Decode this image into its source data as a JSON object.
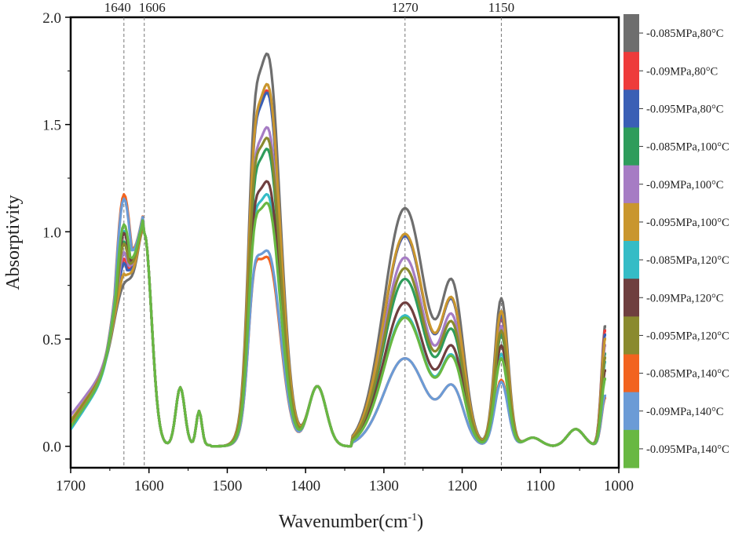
{
  "chart_data": {
    "type": "line",
    "title": "",
    "xlabel": "Wavenumber(cm",
    "xlabel_sup": "-1",
    "xlabel_close": ")",
    "ylabel": "Absorptivity",
    "xlim": [
      1700,
      1000
    ],
    "ylim": [
      -0.1,
      2.0
    ],
    "x_ticks": [
      1700,
      1600,
      1500,
      1400,
      1300,
      1200,
      1100,
      1000
    ],
    "x_tick_labels": [
      "1700",
      "1600",
      "1500",
      "1400",
      "1300",
      "1200",
      "1100",
      "1000"
    ],
    "y_ticks": [
      0.0,
      0.5,
      1.0,
      1.5,
      2.0
    ],
    "y_tick_labels": [
      "0.0",
      "0.5",
      "1.0",
      "1.5",
      "2.0"
    ],
    "grid": false,
    "legend_position": "right",
    "annotations": [
      {
        "x": 1632,
        "label": "1640"
      },
      {
        "x": 1606,
        "label": "1606"
      },
      {
        "x": 1273,
        "label": "1270"
      },
      {
        "x": 1150,
        "label": "1150"
      }
    ],
    "series": [
      {
        "name": "-0.085MPa,80°C",
        "color": "#6e6e6e",
        "p1632": 0.73,
        "p1465": 1.62,
        "p1447": 1.81,
        "p1273": 1.11,
        "p1150": 0.69,
        "p1017": 0.57,
        "start": 0.2
      },
      {
        "name": "-0.09MPa,80°C",
        "color": "#ee3b3b",
        "p1632": 0.87,
        "p1465": 1.48,
        "p1447": 1.64,
        "p1273": 0.98,
        "p1150": 0.6,
        "p1017": 0.55,
        "start": 0.2
      },
      {
        "name": "-0.095MPa,80°C",
        "color": "#3a5fb5",
        "p1632": 0.85,
        "p1465": 1.47,
        "p1447": 1.63,
        "p1273": 0.98,
        "p1150": 0.61,
        "p1017": 0.53,
        "start": 0.2
      },
      {
        "name": "-0.085MPa,100°C",
        "color": "#2e9c5b",
        "p1632": 0.95,
        "p1465": 1.25,
        "p1447": 1.37,
        "p1273": 0.78,
        "p1150": 0.52,
        "p1017": 0.44,
        "start": 0.18
      },
      {
        "name": "-0.09MPa,100°C",
        "color": "#a67cc4",
        "p1632": 0.9,
        "p1465": 1.33,
        "p1447": 1.47,
        "p1273": 0.88,
        "p1150": 0.56,
        "p1017": 0.48,
        "start": 0.24
      },
      {
        "name": "-0.095MPa,100°C",
        "color": "#c9962e",
        "p1632": 0.8,
        "p1465": 1.49,
        "p1447": 1.67,
        "p1273": 0.99,
        "p1150": 0.63,
        "p1017": 0.51,
        "start": 0.2
      },
      {
        "name": "-0.085MPa,120°C",
        "color": "#35bcc6",
        "p1632": 1.0,
        "p1465": 1.08,
        "p1447": 1.16,
        "p1273": 0.61,
        "p1150": 0.43,
        "p1017": 0.4,
        "start": 0.13
      },
      {
        "name": "-0.09MPa,120°C",
        "color": "#6f3f3f",
        "p1632": 0.99,
        "p1465": 1.13,
        "p1447": 1.22,
        "p1273": 0.67,
        "p1150": 0.47,
        "p1017": 0.36,
        "start": 0.17
      },
      {
        "name": "-0.095MPa,120°C",
        "color": "#8a8a2e",
        "p1632": 0.94,
        "p1465": 1.31,
        "p1447": 1.42,
        "p1273": 0.83,
        "p1150": 0.54,
        "p1017": 0.42,
        "start": 0.19
      },
      {
        "name": "-0.085MPa,140°C",
        "color": "#f2631f",
        "p1632": 1.17,
        "p1465": 0.85,
        "p1447": 0.87,
        "p1273": 0.41,
        "p1150": 0.31,
        "p1017": 0.23,
        "start": 0.16
      },
      {
        "name": "-0.09MPa,140°C",
        "color": "#6b9bd6",
        "p1632": 1.15,
        "p1465": 0.86,
        "p1447": 0.9,
        "p1273": 0.41,
        "p1150": 0.3,
        "p1017": 0.24,
        "start": 0.15
      },
      {
        "name": "-0.095MPa,140°C",
        "color": "#68b842",
        "p1632": 1.03,
        "p1465": 1.05,
        "p1447": 1.12,
        "p1273": 0.6,
        "p1150": 0.41,
        "p1017": 0.32,
        "start": 0.15
      }
    ]
  }
}
